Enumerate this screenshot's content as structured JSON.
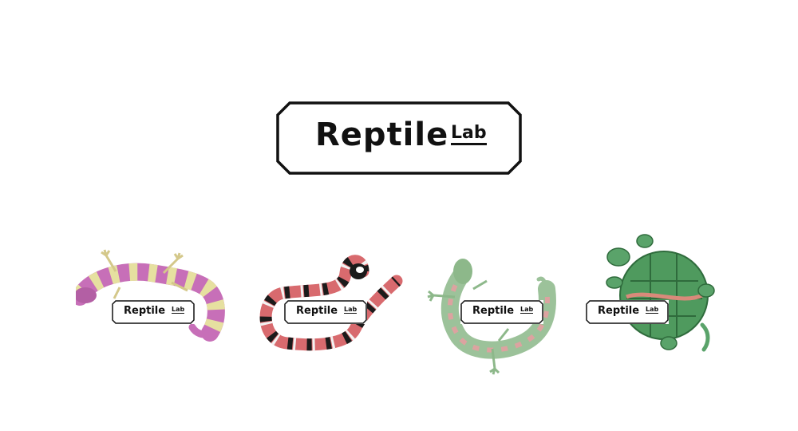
{
  "logo": {
    "word": "Reptile",
    "sub": "Lab"
  },
  "badges": [
    {
      "word": "Reptile",
      "sub": "Lab"
    },
    {
      "word": "Reptile",
      "sub": "Lab"
    },
    {
      "word": "Reptile",
      "sub": "Lab"
    },
    {
      "word": "Reptile",
      "sub": "Lab"
    }
  ],
  "illustrations": [
    "gecko-illustration",
    "snake-illustration",
    "lizard-illustration",
    "turtle-illustration"
  ],
  "colors": {
    "ink": "#111111",
    "gecko_pink": "#c76fb8",
    "gecko_yellow": "#e6e0a0",
    "snake_red": "#d86a6e",
    "snake_black": "#1b1b1b",
    "lizard_green": "#9cc29a",
    "turtle_green": "#4f9a5e"
  }
}
